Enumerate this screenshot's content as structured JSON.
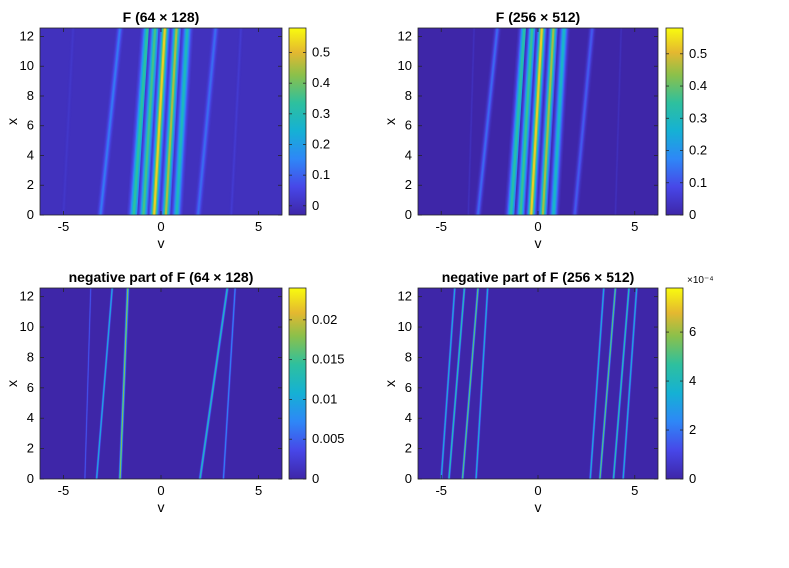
{
  "chart_data": [
    {
      "type": "heatmap",
      "title": "F  (64 × 128)",
      "xlabel": "v",
      "ylabel": "x",
      "xlim": [
        -6.2,
        6.2
      ],
      "ylim": [
        0,
        12.57
      ],
      "xticks": [
        -5,
        0,
        5
      ],
      "yticks": [
        0,
        2,
        4,
        6,
        8,
        10,
        12
      ],
      "colorbar": {
        "min": -0.03,
        "max": 0.58,
        "ticks": [
          "0",
          "0.1",
          "0.2",
          "0.3",
          "0.4",
          "0.5"
        ],
        "tick_values": [
          0,
          0.1,
          0.2,
          0.3,
          0.4,
          0.5
        ],
        "exponent": ""
      },
      "streaks": [
        {
          "v0": -1.4,
          "v1": -0.7,
          "amp": 0.35,
          "width": 0.22
        },
        {
          "v0": -0.9,
          "v1": -0.3,
          "amp": 0.38,
          "width": 0.2
        },
        {
          "v0": -0.35,
          "v1": 0.2,
          "amp": 0.56,
          "width": 0.2
        },
        {
          "v0": 0.25,
          "v1": 0.8,
          "amp": 0.48,
          "width": 0.2
        },
        {
          "v0": 0.8,
          "v1": 1.35,
          "amp": 0.3,
          "width": 0.2
        },
        {
          "v0": -3.1,
          "v1": -2.1,
          "amp": 0.14,
          "width": 0.14
        },
        {
          "v0": 1.9,
          "v1": 2.8,
          "amp": 0.12,
          "width": 0.14
        },
        {
          "v0": -5.0,
          "v1": -4.5,
          "amp": 0.02,
          "width": 0.08
        },
        {
          "v0": 3.6,
          "v1": 4.1,
          "amp": 0.03,
          "width": 0.08
        }
      ]
    },
    {
      "type": "heatmap",
      "title": "F  (256 × 512)",
      "xlabel": "v",
      "ylabel": "x",
      "xlim": [
        -6.2,
        6.2
      ],
      "ylim": [
        0,
        12.57
      ],
      "xticks": [
        -5,
        0,
        5
      ],
      "yticks": [
        0,
        2,
        4,
        6,
        8,
        10,
        12
      ],
      "colorbar": {
        "min": 0,
        "max": 0.58,
        "ticks": [
          "0",
          "0.1",
          "0.2",
          "0.3",
          "0.4",
          "0.5"
        ],
        "tick_values": [
          0,
          0.1,
          0.2,
          0.3,
          0.4,
          0.5
        ],
        "exponent": ""
      },
      "streaks": [
        {
          "v0": -1.4,
          "v1": -0.7,
          "amp": 0.35,
          "width": 0.22
        },
        {
          "v0": -0.9,
          "v1": -0.3,
          "amp": 0.38,
          "width": 0.2
        },
        {
          "v0": -0.35,
          "v1": 0.2,
          "amp": 0.56,
          "width": 0.2
        },
        {
          "v0": 0.25,
          "v1": 0.8,
          "amp": 0.48,
          "width": 0.2
        },
        {
          "v0": 0.8,
          "v1": 1.35,
          "amp": 0.3,
          "width": 0.2
        },
        {
          "v0": -3.1,
          "v1": -2.1,
          "amp": 0.14,
          "width": 0.14
        },
        {
          "v0": 1.9,
          "v1": 2.8,
          "amp": 0.12,
          "width": 0.14
        },
        {
          "v0": -3.6,
          "v1": -3.3,
          "amp": 0.03,
          "width": 0.06
        },
        {
          "v0": 4.0,
          "v1": 4.3,
          "amp": 0.03,
          "width": 0.06
        }
      ]
    },
    {
      "type": "heatmap",
      "title": "negative part of F  (64 × 128)",
      "xlabel": "v",
      "ylabel": "x",
      "xlim": [
        -6.2,
        6.2
      ],
      "ylim": [
        0,
        12.57
      ],
      "xticks": [
        -5,
        0,
        5
      ],
      "yticks": [
        0,
        2,
        4,
        6,
        8,
        10,
        12
      ],
      "colorbar": {
        "min": 0,
        "max": 0.024,
        "ticks": [
          "0",
          "0.005",
          "0.01",
          "0.015",
          "0.02"
        ],
        "tick_values": [
          0,
          0.005,
          0.01,
          0.015,
          0.02
        ],
        "exponent": ""
      },
      "streaks": [
        {
          "v0": -3.3,
          "v1": -2.5,
          "amp": 0.012,
          "width": 0.05
        },
        {
          "v0": -2.1,
          "v1": -1.7,
          "amp": 0.02,
          "width": 0.06
        },
        {
          "v0": 2.0,
          "v1": 3.4,
          "amp": 0.014,
          "width": 0.06
        },
        {
          "v0": 3.2,
          "v1": 3.8,
          "amp": 0.008,
          "width": 0.05
        },
        {
          "v0": -3.9,
          "v1": -3.6,
          "amp": 0.005,
          "width": 0.04
        }
      ]
    },
    {
      "type": "heatmap",
      "title": "negative part of F  (256 × 512)",
      "xlabel": "v",
      "ylabel": "x",
      "xlim": [
        -6.2,
        6.2
      ],
      "ylim": [
        0,
        12.57
      ],
      "xticks": [
        -5,
        0,
        5
      ],
      "yticks": [
        0,
        2,
        4,
        6,
        8,
        10,
        12
      ],
      "colorbar": {
        "min": 0,
        "max": 0.00078,
        "ticks": [
          "0",
          "2",
          "4",
          "6"
        ],
        "tick_values": [
          0,
          0.0002,
          0.0004,
          0.0006
        ],
        "exponent": "×10⁻⁴"
      },
      "streaks": [
        {
          "v0": -5.0,
          "v1": -4.3,
          "amp": 0.0004,
          "width": 0.05
        },
        {
          "v0": -4.6,
          "v1": -3.8,
          "amp": 0.0005,
          "width": 0.05
        },
        {
          "v0": -3.9,
          "v1": -3.1,
          "amp": 0.0006,
          "width": 0.05
        },
        {
          "v0": -3.2,
          "v1": -2.6,
          "amp": 0.0004,
          "width": 0.05
        },
        {
          "v0": 2.7,
          "v1": 3.4,
          "amp": 0.0004,
          "width": 0.05
        },
        {
          "v0": 3.2,
          "v1": 4.0,
          "amp": 0.0006,
          "width": 0.05
        },
        {
          "v0": 3.9,
          "v1": 4.7,
          "amp": 0.0005,
          "width": 0.05
        },
        {
          "v0": 4.4,
          "v1": 5.1,
          "amp": 0.0004,
          "width": 0.05
        }
      ]
    }
  ]
}
